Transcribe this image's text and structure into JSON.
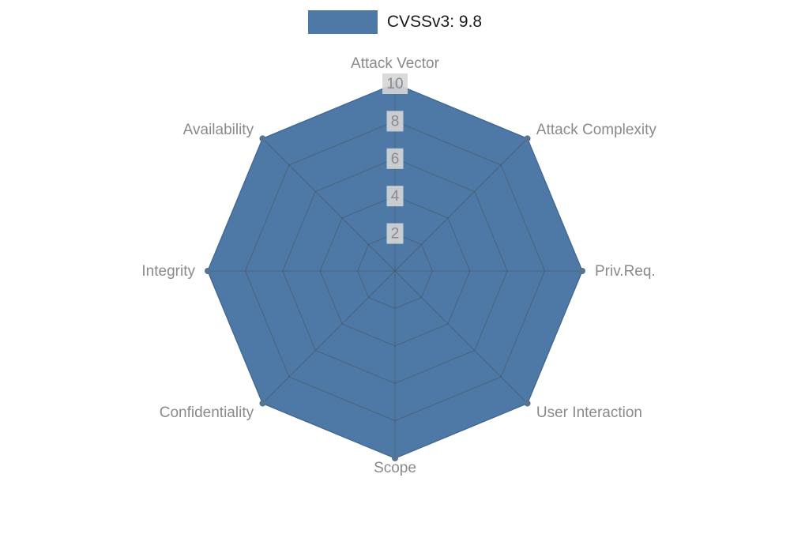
{
  "legend": {
    "label": "CVSSv3: 9.8",
    "swatch_color": "#4e79a7"
  },
  "chart_data": {
    "type": "radar",
    "title": "CVSSv3: 9.8",
    "categories": [
      "Attack Vector",
      "Attack Complexity",
      "Priv.Req.",
      "User Interaction",
      "Scope",
      "Confidentiality",
      "Integrity",
      "Availability"
    ],
    "series": [
      {
        "name": "CVSSv3: 9.8",
        "values": [
          10,
          10,
          10,
          10,
          10,
          10,
          10,
          10
        ]
      }
    ],
    "rmin": 0,
    "rmax": 10,
    "ticks": [
      2,
      4,
      6,
      8,
      10
    ],
    "grid": true,
    "legend_position": "top",
    "colors": {
      "fill": "#4e79a7",
      "stroke": "#426a94",
      "marker": "#56748f",
      "grid_line": "rgba(70,70,70,0.45)",
      "axis_label": "#8a8a8a",
      "tick_label": "#8a8a8a",
      "tick_bg": "rgba(214,214,214,0.9)",
      "legend_text": "#1a1a1a"
    }
  }
}
